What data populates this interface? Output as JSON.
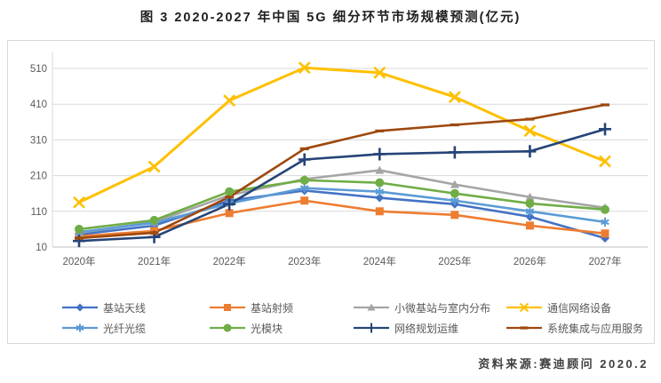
{
  "title": "图 3 2020-2027 年中国 5G 细分环节市场规模预测(亿元)",
  "source": "资料来源:赛迪顾问  2020.2",
  "colors": {
    "grid": "#d9d9d9",
    "axis": "#bfbfbf",
    "tick_text": "#595959",
    "title_text": "#1f1f1f",
    "source_text": "#3f3f3f"
  },
  "chart_data": {
    "type": "line",
    "title": "图 3 2020-2027 年中国 5G 细分环节市场规模预测(亿元)",
    "xlabel": "",
    "ylabel": "",
    "categories": [
      "2020年",
      "2021年",
      "2022年",
      "2023年",
      "2024年",
      "2025年",
      "2026年",
      "2027年"
    ],
    "yticks": [
      10,
      110,
      210,
      310,
      410,
      510
    ],
    "ylim": [
      10,
      585
    ],
    "grid": true,
    "legend_position": "bottom",
    "series": [
      {
        "name": "基站天线",
        "color": "#4472C4",
        "marker": "diamond",
        "values": [
          45,
          70,
          140,
          168,
          148,
          130,
          95,
          35
        ]
      },
      {
        "name": "基站射频",
        "color": "#ED7D31",
        "marker": "square",
        "values": [
          40,
          55,
          105,
          140,
          110,
          100,
          70,
          48
        ]
      },
      {
        "name": "小微基站与室内分布",
        "color": "#A5A5A5",
        "marker": "triangle",
        "values": [
          50,
          80,
          155,
          200,
          225,
          185,
          150,
          120
        ]
      },
      {
        "name": "通信网络设备",
        "color": "#FFC000",
        "marker": "x",
        "values": [
          135,
          235,
          420,
          512,
          498,
          430,
          335,
          250
        ]
      },
      {
        "name": "光纤光缆",
        "color": "#5B9BD5",
        "marker": "asterisk",
        "values": [
          52,
          78,
          132,
          175,
          165,
          140,
          110,
          80
        ]
      },
      {
        "name": "光模块",
        "color": "#70AD47",
        "marker": "circle",
        "values": [
          60,
          85,
          165,
          197,
          190,
          160,
          132,
          115
        ]
      },
      {
        "name": "网络规划运维",
        "color": "#264478",
        "marker": "plus",
        "values": [
          27,
          38,
          130,
          255,
          270,
          275,
          278,
          340
        ]
      },
      {
        "name": "系统集成与应用服务",
        "color": "#9E480E",
        "marker": "dash",
        "values": [
          35,
          50,
          150,
          285,
          335,
          352,
          368,
          408
        ]
      }
    ]
  }
}
